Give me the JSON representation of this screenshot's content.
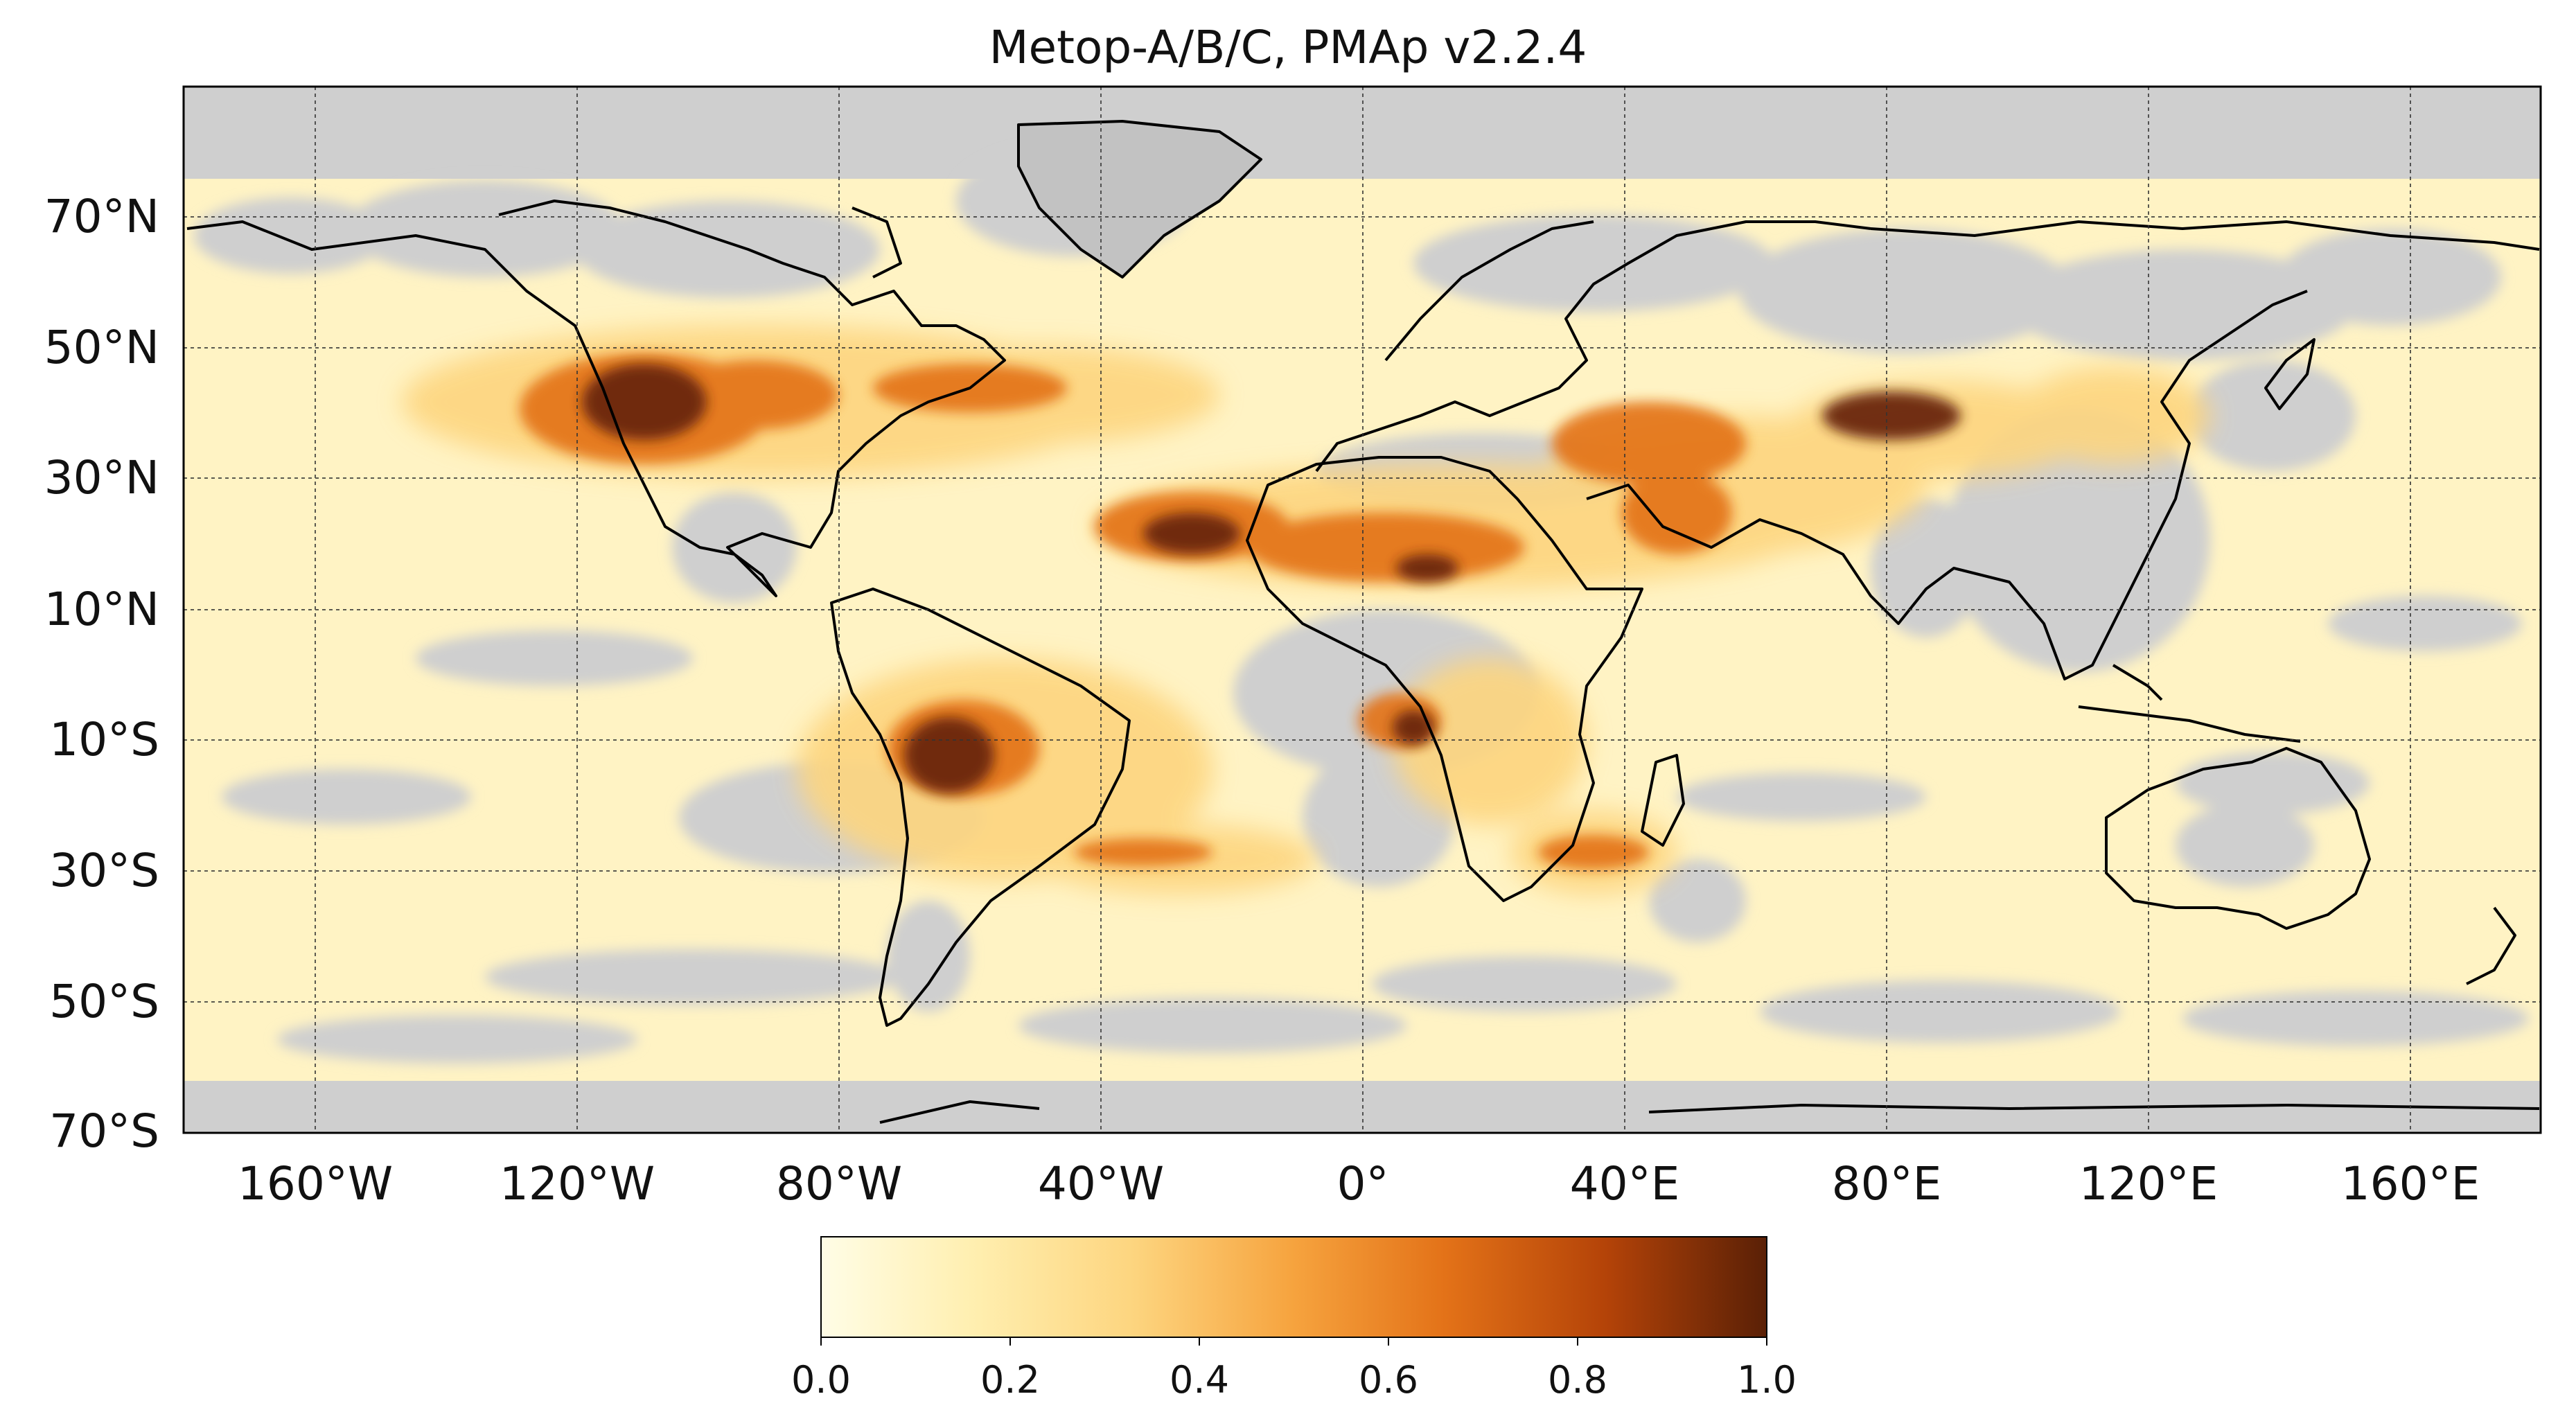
{
  "title": "Metop-A/B/C, PMAp v2.2.4",
  "lat_labels": [
    "70°N",
    "50°N",
    "30°N",
    "10°N",
    "10°S",
    "30°S",
    "50°S",
    "70°S"
  ],
  "lon_labels": [
    "160°W",
    "120°W",
    "80°W",
    "40°W",
    "0°",
    "40°E",
    "80°E",
    "120°E",
    "160°E"
  ],
  "colorbar": {
    "ticks": [
      "0.0",
      "0.2",
      "0.4",
      "0.6",
      "0.8",
      "1.0"
    ],
    "range": [
      0.0,
      1.0
    ],
    "colors": [
      "#fffde6",
      "#ffefb0",
      "#fdd57f",
      "#f6a33e",
      "#e37218",
      "#b44308",
      "#5a2006"
    ]
  },
  "colors": {
    "no_data": "#cfcfcf",
    "background": "#ffffff",
    "coastline": "#000000"
  }
}
